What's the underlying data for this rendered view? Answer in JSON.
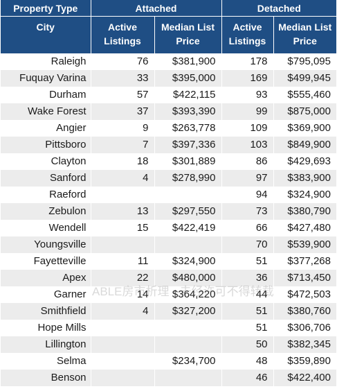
{
  "header": {
    "property_type": "Property Type",
    "group_attached": "Attached",
    "group_detached": "Detached",
    "city": "City",
    "active_listings": "Active Listings",
    "median_list_price": "Median List Price"
  },
  "rows": [
    {
      "city": "Raleigh",
      "att_active": "76",
      "att_price": "$381,900",
      "det_active": "178",
      "det_price": "$795,095"
    },
    {
      "city": "Fuquay Varina",
      "att_active": "33",
      "att_price": "$395,000",
      "det_active": "169",
      "det_price": "$499,945"
    },
    {
      "city": "Durham",
      "att_active": "57",
      "att_price": "$422,115",
      "det_active": "93",
      "det_price": "$555,460"
    },
    {
      "city": "Wake Forest",
      "att_active": "37",
      "att_price": "$393,390",
      "det_active": "99",
      "det_price": "$875,000"
    },
    {
      "city": "Angier",
      "att_active": "9",
      "att_price": "$263,778",
      "det_active": "109",
      "det_price": "$369,900"
    },
    {
      "city": "Pittsboro",
      "att_active": "7",
      "att_price": "$397,336",
      "det_active": "103",
      "det_price": "$849,900"
    },
    {
      "city": "Clayton",
      "att_active": "18",
      "att_price": "$301,889",
      "det_active": "86",
      "det_price": "$429,693"
    },
    {
      "city": "Sanford",
      "att_active": "4",
      "att_price": "$278,990",
      "det_active": "97",
      "det_price": "$383,900"
    },
    {
      "city": "Raeford",
      "att_active": "",
      "att_price": "",
      "det_active": "94",
      "det_price": "$324,900"
    },
    {
      "city": "Zebulon",
      "att_active": "13",
      "att_price": "$297,550",
      "det_active": "73",
      "det_price": "$380,790"
    },
    {
      "city": "Wendell",
      "att_active": "15",
      "att_price": "$422,419",
      "det_active": "66",
      "det_price": "$427,480"
    },
    {
      "city": "Youngsville",
      "att_active": "",
      "att_price": "",
      "det_active": "70",
      "det_price": "$539,900"
    },
    {
      "city": "Fayetteville",
      "att_active": "11",
      "att_price": "$324,900",
      "det_active": "51",
      "det_price": "$377,268"
    },
    {
      "city": "Apex",
      "att_active": "22",
      "att_price": "$480,000",
      "det_active": "36",
      "det_price": "$713,450"
    },
    {
      "city": "Garner",
      "att_active": "14",
      "att_price": "$364,220",
      "det_active": "44",
      "det_price": "$472,503"
    },
    {
      "city": "Smithfield",
      "att_active": "4",
      "att_price": "$327,200",
      "det_active": "51",
      "det_price": "$380,760"
    },
    {
      "city": "Hope Mills",
      "att_active": "",
      "att_price": "",
      "det_active": "51",
      "det_price": "$306,706"
    },
    {
      "city": "Lillington",
      "att_active": "",
      "att_price": "",
      "det_active": "50",
      "det_price": "$382,345"
    },
    {
      "city": "Selma",
      "att_active": "",
      "att_price": "$234,700",
      "det_active": "48",
      "det_price": "$359,890"
    },
    {
      "city": "Benson",
      "att_active": "",
      "att_price": "",
      "det_active": "46",
      "det_price": "$422,400"
    }
  ],
  "watermark": "ABLE房市析理 · 未经许可不得转载",
  "colors": {
    "header_bg": "#1f4e84",
    "stripe": "#ececec"
  }
}
